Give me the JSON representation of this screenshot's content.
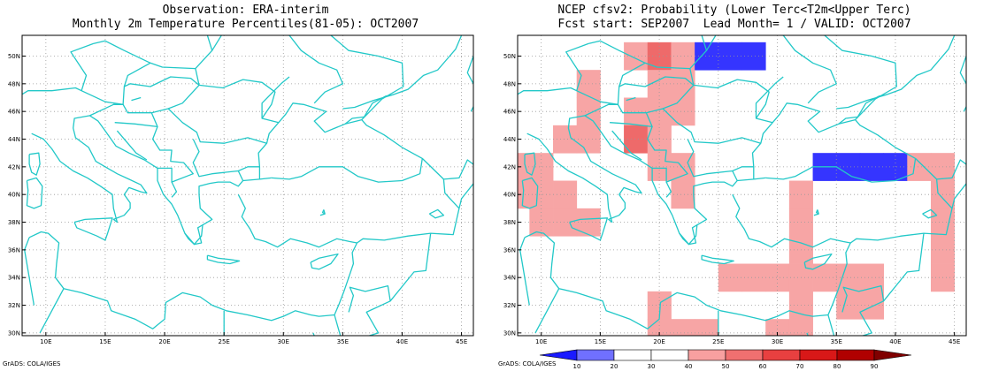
{
  "left_panel": {
    "title_line1": "Observation: ERA-interim",
    "title_line2": "Monthly 2m Temperature Percentiles(81-05): OCT2007",
    "credit": "GrADS: COLA/IGES"
  },
  "right_panel": {
    "title_line1": "NCEP cfsv2: Probability (Lower Terc<T2m<Upper Terc)",
    "title_line2": "Fcst start: SEP2007  Lead Month= 1 / VALID: OCT2007",
    "credit": "GrADS: COLA/IGES"
  },
  "axes": {
    "lon_labels": [
      "10E",
      "15E",
      "20E",
      "25E",
      "30E",
      "35E",
      "40E",
      "45E"
    ],
    "lat_labels": [
      "30N",
      "32N",
      "34N",
      "36N",
      "38N",
      "40N",
      "42N",
      "44N",
      "46N",
      "48N",
      "50N"
    ],
    "lon_range": [
      8,
      46
    ],
    "lat_range": [
      29.8,
      51.5
    ]
  },
  "colorbar": {
    "labels": [
      "10",
      "20",
      "30",
      "40",
      "50",
      "60",
      "70",
      "80",
      "90"
    ],
    "colors": [
      "#1a1aff",
      "#7070ff",
      "#ffffff",
      "#ffffff",
      "#f8a0a0",
      "#f07070",
      "#e84040",
      "#d81818",
      "#b00000",
      "#800000"
    ]
  },
  "colors": {
    "coast": "#22c8c8",
    "pink": "#f7a5a5",
    "red": "#ee6a6a",
    "blue": "#3535ff"
  },
  "chart_data": {
    "type": "heatmap",
    "cells": [
      {
        "lon": 18,
        "lat": 50,
        "category": "pink"
      },
      {
        "lon": 20,
        "lat": 50,
        "category": "red"
      },
      {
        "lon": 22,
        "lat": 50,
        "category": "pink"
      },
      {
        "lon": 24,
        "lat": 50,
        "category": "blue"
      },
      {
        "lon": 26,
        "lat": 50,
        "category": "blue"
      },
      {
        "lon": 28,
        "lat": 50,
        "category": "blue"
      },
      {
        "lon": 14,
        "lat": 48,
        "category": "pink"
      },
      {
        "lon": 20,
        "lat": 48,
        "category": "pink"
      },
      {
        "lon": 22,
        "lat": 48,
        "category": "pink"
      },
      {
        "lon": 14,
        "lat": 46,
        "category": "pink"
      },
      {
        "lon": 18,
        "lat": 46,
        "category": "pink"
      },
      {
        "lon": 20,
        "lat": 46,
        "category": "pink"
      },
      {
        "lon": 22,
        "lat": 46,
        "category": "pink"
      },
      {
        "lon": 12,
        "lat": 44,
        "category": "pink"
      },
      {
        "lon": 14,
        "lat": 44,
        "category": "pink"
      },
      {
        "lon": 18,
        "lat": 44,
        "category": "red"
      },
      {
        "lon": 20,
        "lat": 44,
        "category": "pink"
      },
      {
        "lon": 8,
        "lat": 42,
        "category": "pink"
      },
      {
        "lon": 10,
        "lat": 42,
        "category": "pink"
      },
      {
        "lon": 20,
        "lat": 42,
        "category": "pink"
      },
      {
        "lon": 22,
        "lat": 42,
        "category": "pink"
      },
      {
        "lon": 34,
        "lat": 42,
        "category": "blue"
      },
      {
        "lon": 36,
        "lat": 42,
        "category": "blue"
      },
      {
        "lon": 38,
        "lat": 42,
        "category": "blue"
      },
      {
        "lon": 40,
        "lat": 42,
        "category": "blue"
      },
      {
        "lon": 42,
        "lat": 42,
        "category": "pink"
      },
      {
        "lon": 44,
        "lat": 42,
        "category": "pink"
      },
      {
        "lon": 8,
        "lat": 40,
        "category": "pink"
      },
      {
        "lon": 10,
        "lat": 40,
        "category": "pink"
      },
      {
        "lon": 12,
        "lat": 40,
        "category": "pink"
      },
      {
        "lon": 22,
        "lat": 40,
        "category": "pink"
      },
      {
        "lon": 32,
        "lat": 40,
        "category": "pink"
      },
      {
        "lon": 44,
        "lat": 40,
        "category": "pink"
      },
      {
        "lon": 10,
        "lat": 38,
        "category": "pink"
      },
      {
        "lon": 12,
        "lat": 38,
        "category": "pink"
      },
      {
        "lon": 14,
        "lat": 38,
        "category": "pink"
      },
      {
        "lon": 32,
        "lat": 38,
        "category": "pink"
      },
      {
        "lon": 44,
        "lat": 38,
        "category": "pink"
      },
      {
        "lon": 32,
        "lat": 36,
        "category": "pink"
      },
      {
        "lon": 44,
        "lat": 36,
        "category": "pink"
      },
      {
        "lon": 26,
        "lat": 34,
        "category": "pink"
      },
      {
        "lon": 28,
        "lat": 34,
        "category": "pink"
      },
      {
        "lon": 30,
        "lat": 34,
        "category": "pink"
      },
      {
        "lon": 32,
        "lat": 34,
        "category": "pink"
      },
      {
        "lon": 34,
        "lat": 34,
        "category": "pink"
      },
      {
        "lon": 36,
        "lat": 34,
        "category": "pink"
      },
      {
        "lon": 38,
        "lat": 34,
        "category": "pink"
      },
      {
        "lon": 44,
        "lat": 34,
        "category": "pink"
      },
      {
        "lon": 20,
        "lat": 32,
        "category": "pink"
      },
      {
        "lon": 32,
        "lat": 32,
        "category": "pink"
      },
      {
        "lon": 36,
        "lat": 32,
        "category": "pink"
      },
      {
        "lon": 38,
        "lat": 32,
        "category": "pink"
      },
      {
        "lon": 20,
        "lat": 30,
        "category": "pink"
      },
      {
        "lon": 22,
        "lat": 30,
        "category": "pink"
      },
      {
        "lon": 24,
        "lat": 30,
        "category": "pink"
      },
      {
        "lon": 30,
        "lat": 30,
        "category": "pink"
      },
      {
        "lon": 32,
        "lat": 30,
        "category": "pink"
      }
    ]
  }
}
